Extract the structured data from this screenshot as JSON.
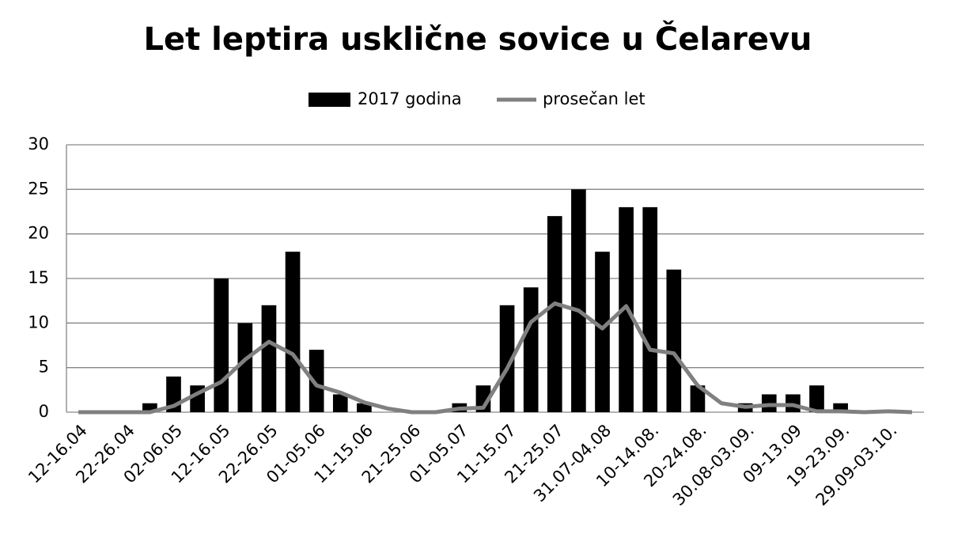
{
  "chart_data": {
    "type": "bar",
    "title": "Let leptira uskličnе sovice u Čelarevu",
    "categories": [
      "12-16.04",
      null,
      "22-26.04",
      null,
      "02-06.05",
      null,
      "12-16.05",
      null,
      "22-26.05",
      null,
      "01-05.06",
      null,
      "11-15.06",
      null,
      "21-25.06",
      null,
      "01-05.07",
      null,
      "11-15.07",
      null,
      "21-25.07",
      null,
      "31.07-04.08",
      null,
      "10-14.08.",
      null,
      "20-24.08.",
      null,
      "30.08-03.09.",
      null,
      "09-13.09",
      null,
      "19-23.09.",
      null,
      "29.09-03.10.",
      null
    ],
    "series": [
      {
        "name": "2017 godina",
        "type": "bar",
        "color": "#000000",
        "values": [
          0,
          0,
          0,
          1,
          4,
          3,
          15,
          10,
          12,
          18,
          7,
          2,
          1,
          0,
          0,
          0,
          1,
          3,
          12,
          14,
          22,
          25,
          18,
          23,
          23,
          16,
          3,
          0,
          1,
          2,
          2,
          3,
          1,
          0,
          0,
          0
        ]
      },
      {
        "name": "prosečan let",
        "type": "line",
        "color": "#808080",
        "values": [
          0,
          0,
          0,
          0,
          0.7,
          2.1,
          3.4,
          5.9,
          7.9,
          6.5,
          3.0,
          2.2,
          1.1,
          0.4,
          0,
          0,
          0.4,
          0.5,
          4.9,
          10.1,
          12.2,
          11.4,
          9.4,
          11.9,
          7.0,
          6.6,
          3.0,
          1.0,
          0.6,
          0.8,
          0.8,
          0.1,
          0.1,
          0,
          0.1,
          0
        ]
      }
    ],
    "ylim": [
      0,
      30
    ],
    "yticks": [
      0,
      5,
      10,
      15,
      20,
      25,
      30
    ],
    "grid": true,
    "legend": "top"
  }
}
